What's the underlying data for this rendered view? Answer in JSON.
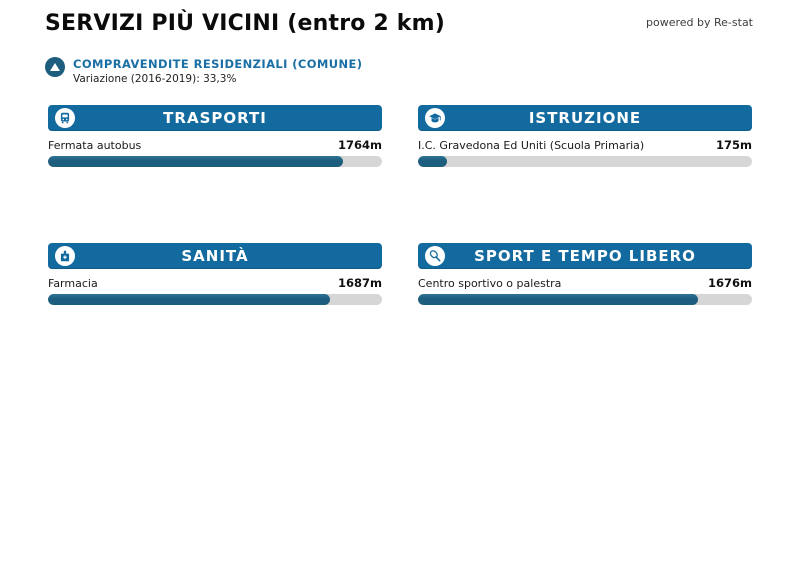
{
  "page": {
    "title": "SERVIZI PIÙ VICINI (entro 2 km)",
    "powered_by": "powered by Re-stat"
  },
  "subtitle": {
    "icon": "trend-up-icon",
    "label": "COMPRAVENDITE RESIDENZIALI (COMUNE)",
    "variation": "Variazione (2016-2019): 33,3%"
  },
  "colors": {
    "panel_header_blue": "#136a9e",
    "bar_fill_blue": "#1d5d7d",
    "bar_track_gray": "#d6d6d6",
    "accent_text_blue": "#1a6fa5",
    "trend_circle_blue": "#1d5d7d"
  },
  "panels": [
    {
      "title": "TRASPORTI",
      "icon": "bus-icon",
      "item": {
        "label": "Fermata autobus",
        "distance": "1764m",
        "value_m": 1764,
        "percent": 88.2
      }
    },
    {
      "title": "ISTRUZIONE",
      "icon": "school-icon",
      "item": {
        "label": "I.C. Gravedona Ed Uniti (Scuola Primaria)",
        "distance": "175m",
        "value_m": 175,
        "percent": 8.75
      }
    },
    {
      "title": "SANITÀ",
      "icon": "hospital-icon",
      "item": {
        "label": "Farmacia",
        "distance": "1687m",
        "value_m": 1687,
        "percent": 84.35
      }
    },
    {
      "title": "SPORT E TEMPO LIBERO",
      "icon": "racket-icon",
      "item": {
        "label": "Centro sportivo o palestra",
        "distance": "1676m",
        "value_m": 1676,
        "percent": 83.8
      }
    }
  ],
  "chart_data": {
    "type": "bar",
    "orientation": "horizontal",
    "title": "SERVIZI PIÙ VICINI (entro 2 km)",
    "subtitle": "COMPRAVENDITE RESIDENZIALI (COMUNE) — Variazione (2016-2019): 33,3%",
    "categories": [
      "Trasporti — Fermata autobus",
      "Istruzione — I.C. Gravedona Ed Uniti (Scuola Primaria)",
      "Sanità — Farmacia",
      "Sport e tempo libero — Centro sportivo o palestra"
    ],
    "values": [
      1764,
      175,
      1687,
      1676
    ],
    "unit": "m",
    "xlim": [
      0,
      2000
    ],
    "grid": false,
    "legend": false
  }
}
